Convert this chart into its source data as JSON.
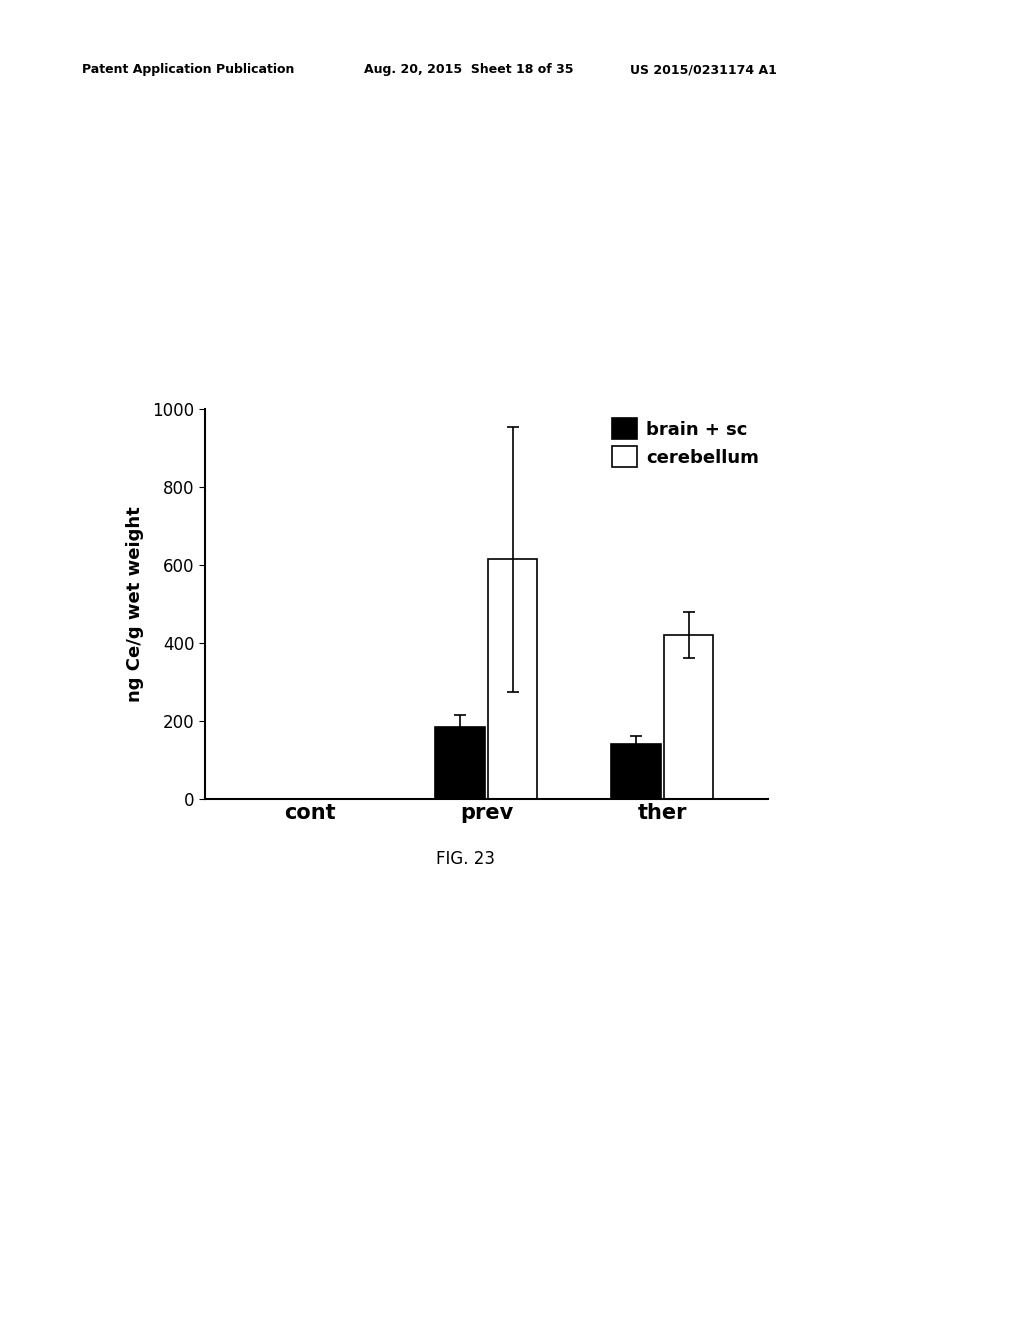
{
  "header_left": "Patent Application Publication",
  "header_mid": "Aug. 20, 2015  Sheet 18 of 35",
  "header_right": "US 2015/0231174 A1",
  "figure_label": "FIG. 23",
  "ylabel": "ng Ce/g wet weight",
  "categories": [
    "cont",
    "prev",
    "ther"
  ],
  "brain_sc_values": [
    0,
    185,
    140
  ],
  "brain_sc_errors": [
    0,
    30,
    20
  ],
  "cerebellum_values": [
    0,
    615,
    420
  ],
  "cerebellum_errors": [
    0,
    340,
    60
  ],
  "brain_sc_color": "#000000",
  "cerebellum_color": "#ffffff",
  "bar_edge_color": "#000000",
  "ylim": [
    0,
    1000
  ],
  "yticks": [
    0,
    200,
    400,
    600,
    800,
    1000
  ],
  "legend_labels": [
    "brain + sc",
    "cerebellum"
  ],
  "bar_width": 0.28,
  "background_color": "#ffffff",
  "figsize": [
    10.24,
    13.2
  ],
  "dpi": 100
}
